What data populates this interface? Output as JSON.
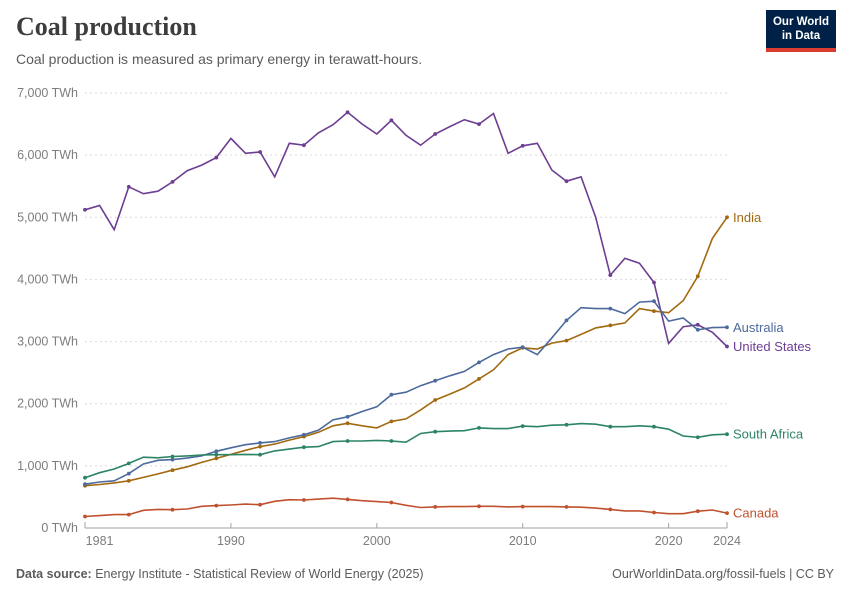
{
  "header": {
    "title": "Coal production",
    "subtitle": "Coal production is measured as primary energy in terawatt-hours."
  },
  "logo": {
    "line1": "Our World",
    "line2": "in Data",
    "bg_color": "#002147",
    "bar_color": "#dc3b2f"
  },
  "footer": {
    "source_label": "Data source:",
    "source_text": " Energy Institute - Statistical Review of World Energy (2025)",
    "right_text": "OurWorldinData.org/fossil-fuels | CC BY"
  },
  "chart_data": {
    "type": "line",
    "unit": "TWh",
    "x_label": "",
    "y_label": "",
    "ylim": [
      0,
      7000
    ],
    "grid": "dashed-horizontal",
    "legend_position": "right-end-labels",
    "x": [
      1980,
      1981,
      1982,
      1983,
      1984,
      1985,
      1986,
      1987,
      1988,
      1989,
      1990,
      1991,
      1992,
      1993,
      1994,
      1995,
      1996,
      1997,
      1998,
      1999,
      2000,
      2001,
      2002,
      2003,
      2004,
      2005,
      2006,
      2007,
      2008,
      2009,
      2010,
      2011,
      2012,
      2013,
      2014,
      2015,
      2016,
      2017,
      2018,
      2019,
      2020,
      2021,
      2022,
      2023,
      2024
    ],
    "y_ticks": [
      {
        "value": 0,
        "label": "0 TWh"
      },
      {
        "value": 1000,
        "label": "1,000 TWh"
      },
      {
        "value": 2000,
        "label": "2,000 TWh"
      },
      {
        "value": 3000,
        "label": "3,000 TWh"
      },
      {
        "value": 4000,
        "label": "4,000 TWh"
      },
      {
        "value": 5000,
        "label": "5,000 TWh"
      },
      {
        "value": 6000,
        "label": "6,000 TWh"
      },
      {
        "value": 7000,
        "label": "7,000 TWh"
      }
    ],
    "x_ticks": [
      {
        "year": 1981,
        "label": "1981"
      },
      {
        "year": 1990,
        "label": "1990"
      },
      {
        "year": 2000,
        "label": "2000"
      },
      {
        "year": 2010,
        "label": "2010"
      },
      {
        "year": 2020,
        "label": "2020"
      },
      {
        "year": 2024,
        "label": "2024"
      }
    ],
    "series": [
      {
        "name": "United States",
        "color": "#6d3e91",
        "values": [
          5120,
          5190,
          4800,
          5490,
          5380,
          5420,
          5570,
          5750,
          5840,
          5960,
          6270,
          6030,
          6050,
          5650,
          6190,
          6160,
          6360,
          6490,
          6690,
          6500,
          6340,
          6560,
          6320,
          6160,
          6340,
          6460,
          6570,
          6500,
          6670,
          6030,
          6150,
          6190,
          5760,
          5580,
          5650,
          5000,
          4070,
          4340,
          4260,
          3950,
          2970,
          3240,
          3270,
          3150,
          2920
        ]
      },
      {
        "name": "India",
        "color": "#a2690f",
        "values": [
          680,
          700,
          725,
          760,
          815,
          870,
          930,
          985,
          1055,
          1120,
          1185,
          1250,
          1310,
          1350,
          1415,
          1470,
          1540,
          1645,
          1685,
          1645,
          1610,
          1715,
          1755,
          1900,
          2060,
          2155,
          2255,
          2400,
          2545,
          2790,
          2900,
          2880,
          2975,
          3015,
          3115,
          3220,
          3260,
          3300,
          3530,
          3490,
          3465,
          3660,
          4050,
          4660,
          5000
        ]
      },
      {
        "name": "Australia",
        "color": "#4c6a9c",
        "values": [
          705,
          740,
          760,
          875,
          1030,
          1090,
          1100,
          1125,
          1160,
          1235,
          1290,
          1340,
          1370,
          1390,
          1450,
          1500,
          1575,
          1740,
          1790,
          1875,
          1950,
          2145,
          2185,
          2290,
          2370,
          2450,
          2520,
          2665,
          2790,
          2880,
          2910,
          2790,
          3060,
          3340,
          3545,
          3530,
          3530,
          3450,
          3635,
          3650,
          3330,
          3380,
          3190,
          3225,
          3230
        ]
      },
      {
        "name": "South Africa",
        "color": "#2c8465",
        "values": [
          810,
          890,
          950,
          1040,
          1140,
          1130,
          1150,
          1160,
          1175,
          1180,
          1180,
          1185,
          1180,
          1240,
          1270,
          1300,
          1310,
          1390,
          1400,
          1400,
          1410,
          1400,
          1380,
          1520,
          1550,
          1560,
          1565,
          1610,
          1600,
          1600,
          1640,
          1630,
          1655,
          1660,
          1680,
          1670,
          1630,
          1630,
          1645,
          1630,
          1590,
          1480,
          1460,
          1500,
          1510
        ]
      },
      {
        "name": "Canada",
        "color": "#c0512f",
        "values": [
          185,
          200,
          215,
          215,
          285,
          300,
          295,
          305,
          350,
          360,
          370,
          385,
          375,
          430,
          455,
          450,
          465,
          480,
          460,
          440,
          425,
          410,
          365,
          330,
          340,
          345,
          345,
          350,
          350,
          340,
          345,
          345,
          345,
          340,
          335,
          320,
          300,
          275,
          275,
          250,
          230,
          230,
          270,
          290,
          240
        ]
      }
    ]
  }
}
